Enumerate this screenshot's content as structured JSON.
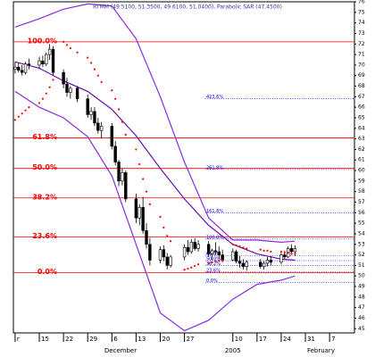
{
  "chart_data": {
    "type": "candlestick",
    "title": "RTMM (49.5100, 51.3500, 49.6100, 51.0400), Parabolic SAR (47.4500)",
    "x": [
      7,
      8,
      9,
      10,
      11,
      14,
      15,
      16,
      17,
      18,
      21,
      22,
      23,
      25,
      28,
      29,
      30,
      31,
      32,
      35,
      36,
      37,
      38,
      39,
      42,
      43,
      44,
      45,
      46,
      49,
      50,
      51,
      52,
      56,
      57,
      58,
      59,
      60,
      63,
      64,
      65,
      66,
      67,
      70,
      71,
      72,
      73,
      74,
      78,
      79,
      80,
      81,
      84,
      85,
      86,
      87,
      88
    ],
    "open": [
      69.6,
      69.8,
      69.5,
      69.3,
      70.1,
      70.0,
      70.4,
      70.1,
      71.0,
      71.5,
      69.3,
      68.2,
      67.4,
      67.8,
      66.8,
      65.3,
      65.6,
      64.5,
      63.8,
      64.2,
      62.3,
      60.8,
      59.0,
      59.8,
      57.3,
      55.5,
      56.5,
      54.3,
      53.0,
      51.5,
      52.5,
      51.8,
      51.0,
      51.8,
      52.7,
      52.3,
      53.2,
      52.6,
      53.0,
      52.1,
      52.4,
      52.3,
      52.0,
      51.5,
      52.3,
      51.4,
      51.2,
      50.9,
      51.3,
      50.9,
      51.2,
      51.5,
      51.3,
      52.0,
      51.8,
      52.6,
      52.3
    ],
    "high": [
      70.3,
      70.2,
      70.0,
      70.3,
      70.6,
      70.8,
      70.9,
      71.2,
      72.0,
      71.8,
      69.6,
      68.8,
      68.0,
      68.0,
      67.2,
      66.0,
      66.0,
      65.0,
      64.6,
      64.5,
      62.8,
      61.0,
      60.2,
      60.0,
      57.8,
      56.8,
      57.5,
      55.0,
      53.6,
      52.8,
      52.9,
      52.2,
      52.0,
      53.0,
      53.4,
      53.5,
      53.6,
      53.4,
      53.3,
      52.6,
      53.2,
      52.8,
      52.5,
      52.6,
      52.5,
      51.9,
      51.6,
      51.5,
      51.6,
      51.4,
      51.8,
      51.9,
      52.2,
      52.4,
      52.8,
      53.0,
      52.9
    ],
    "low": [
      69.2,
      69.3,
      69.0,
      69.1,
      69.6,
      69.6,
      69.8,
      69.9,
      70.5,
      69.0,
      67.8,
      67.0,
      66.8,
      66.5,
      65.0,
      64.8,
      64.2,
      63.5,
      63.0,
      62.0,
      60.5,
      58.5,
      58.6,
      57.0,
      55.0,
      54.8,
      54.0,
      52.6,
      51.0,
      51.2,
      51.4,
      50.6,
      50.8,
      51.5,
      52.0,
      52.1,
      52.4,
      52.3,
      51.8,
      51.5,
      52.0,
      51.6,
      51.3,
      51.4,
      51.2,
      50.8,
      50.6,
      50.5,
      50.7,
      50.6,
      50.9,
      51.0,
      51.1,
      51.6,
      51.7,
      52.0,
      51.9
    ],
    "close": [
      69.8,
      69.5,
      69.3,
      70.1,
      70.0,
      70.4,
      70.1,
      71.0,
      71.5,
      69.3,
      68.2,
      67.4,
      67.8,
      66.8,
      65.3,
      65.6,
      64.5,
      63.8,
      64.2,
      62.3,
      60.8,
      59.0,
      59.8,
      57.3,
      55.5,
      56.5,
      54.3,
      53.0,
      51.5,
      52.5,
      51.8,
      51.0,
      51.8,
      52.7,
      52.3,
      53.2,
      52.6,
      53.0,
      52.1,
      52.4,
      52.3,
      52.0,
      51.5,
      52.3,
      51.4,
      51.2,
      50.9,
      51.3,
      50.9,
      51.2,
      51.5,
      51.3,
      52.0,
      51.8,
      52.6,
      52.3,
      52.6
    ],
    "up_color": "#ffffff",
    "down_color": "#000000",
    "bands": [
      {
        "color": "#8a2be2",
        "x": [
          7,
          14,
          21,
          28,
          35,
          42,
          49,
          56,
          63,
          70,
          77,
          84,
          88
        ],
        "values": [
          73.6,
          74.4,
          75.3,
          75.8,
          75.6,
          72.5,
          67.0,
          60.8,
          55.5,
          53.4,
          53.4,
          53.2,
          53.3
        ]
      },
      {
        "color": "#6a0dad",
        "x": [
          7,
          14,
          21,
          28,
          35,
          42,
          49,
          56,
          63,
          70,
          77,
          84,
          88
        ],
        "values": [
          70.3,
          69.7,
          68.5,
          67.5,
          65.8,
          63.3,
          60.2,
          57.3,
          54.8,
          53.0,
          52.1,
          51.6,
          51.5
        ]
      },
      {
        "color": "#8a2be2",
        "x": [
          7,
          14,
          21,
          28,
          35,
          42,
          49,
          56,
          63,
          70,
          77,
          84,
          88
        ],
        "values": [
          67.5,
          66.0,
          65.0,
          63.2,
          59.5,
          53.0,
          46.5,
          44.8,
          45.8,
          47.8,
          49.2,
          49.6,
          50.0
        ]
      }
    ],
    "sar": {
      "color": "#ff0000",
      "values": [
        64.8,
        65.1,
        65.4,
        65.7,
        66.0,
        66.4,
        66.8,
        67.3,
        67.9,
        68.6,
        72.2,
        71.9,
        71.6,
        71.2,
        70.7,
        70.2,
        69.6,
        69.0,
        68.4,
        67.6,
        66.8,
        65.8,
        64.6,
        63.4,
        62.0,
        60.6,
        59.2,
        58.0,
        56.8,
        55.6,
        54.6,
        53.8,
        53.3,
        50.6,
        50.7,
        50.8,
        50.95,
        51.1,
        51.2,
        51.3,
        51.4,
        51.45,
        51.5,
        53.0,
        52.9,
        52.8,
        52.7,
        52.6,
        52.5,
        52.4,
        52.4,
        52.3,
        52.3,
        52.2,
        52.2,
        52.1,
        52.1
      ]
    },
    "fib": {
      "color": "#ff0000",
      "levels": [
        {
          "value": 72.2,
          "label": "100.0%"
        },
        {
          "value": 63.1,
          "label": "61.8%"
        },
        {
          "value": 60.2,
          "label": "50.0%"
        },
        {
          "value": 57.4,
          "label": "38.2%"
        },
        {
          "value": 53.7,
          "label": "23.6%"
        },
        {
          "value": 50.3,
          "label": "0.0%"
        }
      ]
    },
    "fib_ext": {
      "color": "#0000ff",
      "levels": [
        {
          "value": 66.8,
          "label": "423.6%"
        },
        {
          "value": 60.1,
          "label": "261.8%"
        },
        {
          "value": 56.0,
          "label": "161.8%"
        },
        {
          "value": 53.5,
          "label": "100.0%"
        },
        {
          "value": 51.9,
          "label": "61.8%"
        },
        {
          "value": 51.45,
          "label": "50.0%"
        },
        {
          "value": 50.97,
          "label": "38.2%"
        },
        {
          "value": 50.37,
          "label": "23.6%"
        },
        {
          "value": 49.4,
          "label": "0.0%"
        }
      ]
    },
    "xlim": [
      6.5,
      105.2
    ],
    "xticks": [
      {
        "value": 7,
        "label": "r"
      },
      {
        "value": 14,
        "label": "15"
      },
      {
        "value": 21,
        "label": "22"
      },
      {
        "value": 28,
        "label": "29"
      },
      {
        "value": 35,
        "label": "6"
      },
      {
        "value": 42,
        "label": "13"
      },
      {
        "value": 49,
        "label": "20"
      },
      {
        "value": 56,
        "label": "27"
      },
      {
        "value": 70,
        "label": "10"
      },
      {
        "value": 77,
        "label": "17"
      },
      {
        "value": 84,
        "label": "24"
      },
      {
        "value": 91,
        "label": "31"
      },
      {
        "value": 98,
        "label": "7"
      }
    ],
    "months": [
      {
        "value": 37.5,
        "label": "December"
      },
      {
        "value": 70,
        "label": "2005"
      },
      {
        "value": 95.5,
        "label": "February"
      }
    ],
    "ylim": [
      44.6,
      76
    ],
    "yticks": [
      45,
      46,
      47,
      48,
      49,
      50,
      51,
      52,
      53,
      54,
      55,
      56,
      57,
      58,
      59,
      60,
      61,
      62,
      63,
      64,
      65,
      66,
      67,
      68,
      69,
      70,
      71,
      72,
      73,
      74,
      75,
      76
    ]
  }
}
